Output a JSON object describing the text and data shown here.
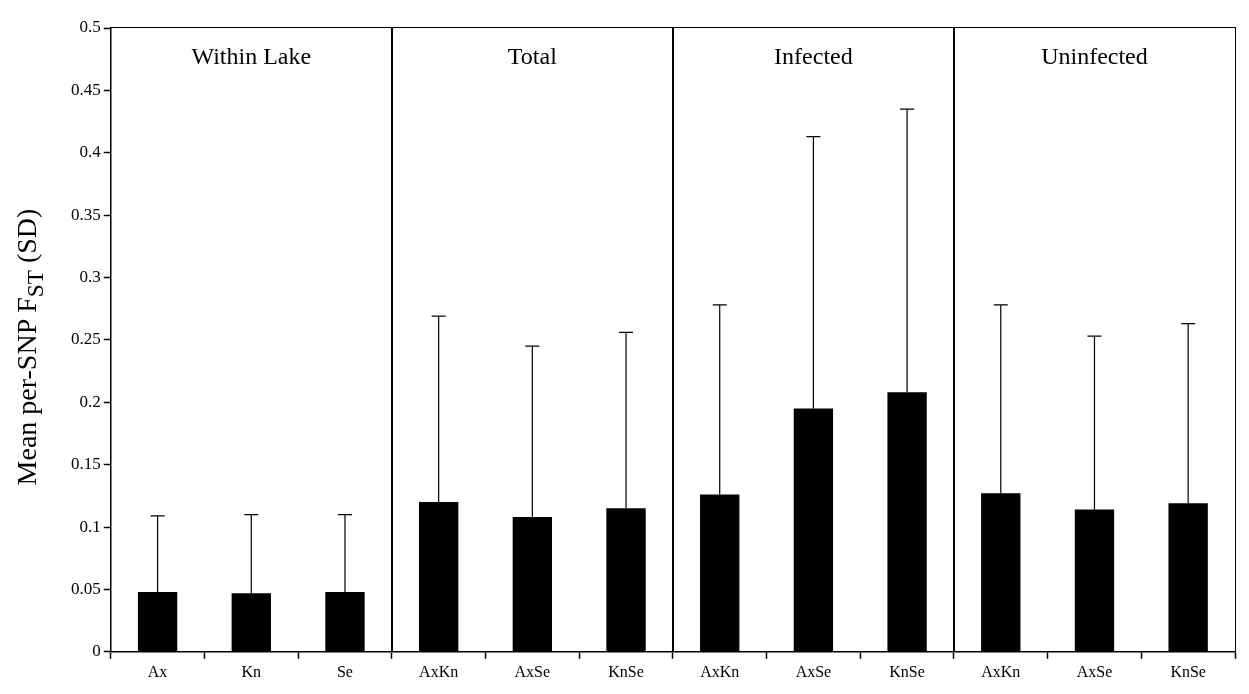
{
  "chart_data": {
    "type": "bar",
    "ylabel": "Mean per-SNP F$_{ST}$ (SD)",
    "categories": [
      "Ax",
      "Kn",
      "Se",
      "AxKn",
      "AxSe",
      "KnSe",
      "AxKn",
      "AxSe",
      "KnSe",
      "AxKn",
      "AxSe",
      "KnSe"
    ],
    "values": [
      0.048,
      0.047,
      0.048,
      0.12,
      0.108,
      0.115,
      0.126,
      0.195,
      0.208,
      0.127,
      0.114,
      0.119
    ],
    "errors": [
      [
        0.048,
        0.109
      ],
      [
        0.047,
        0.11
      ],
      [
        0.048,
        0.11
      ],
      [
        0.12,
        0.269
      ],
      [
        0.108,
        0.245
      ],
      [
        0.115,
        0.256
      ],
      [
        0.126,
        0.278
      ],
      [
        0.195,
        0.413
      ],
      [
        0.208,
        0.435
      ],
      [
        0.127,
        0.278
      ],
      [
        0.114,
        0.253
      ],
      [
        0.119,
        0.263
      ]
    ],
    "color": "#000000",
    "ylim": [
      0,
      0.5
    ],
    "yticks": [
      0,
      0.05,
      0.1,
      0.15,
      0.2,
      0.25,
      0.3,
      0.35,
      0.4,
      0.45,
      0.5
    ],
    "annotations": [
      "Within Lake",
      "Total",
      "Infected",
      "Uninfected"
    ],
    "grid": false,
    "legend": false
  }
}
